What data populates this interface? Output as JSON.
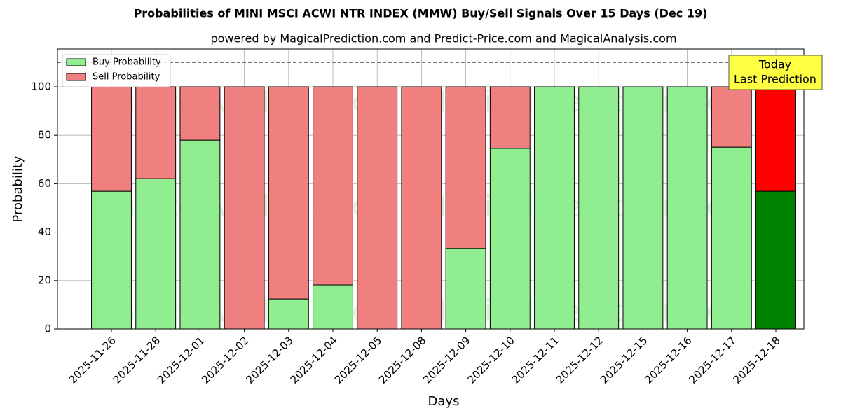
{
  "chart_data": {
    "type": "stacked_bar",
    "title": "Probabilities of MINI MSCI ACWI NTR INDEX (MMW) Buy/Sell Signals Over 15 Days (Dec 19)",
    "subtitle": "powered by MagicalPrediction.com and Predict-Price.com and MagicalAnalysis.com",
    "x_label": "Days",
    "y_label": "Probability",
    "categories": [
      "2025-11-26",
      "2025-11-28",
      "2025-12-01",
      "2025-12-02",
      "2025-12-03",
      "2025-12-04",
      "2025-12-05",
      "2025-12-08",
      "2025-12-09",
      "2025-12-10",
      "2025-12-11",
      "2025-12-12",
      "2025-12-15",
      "2025-12-16",
      "2025-12-17",
      "2025-12-18"
    ],
    "series": [
      {
        "name": "Buy Probability",
        "color": "#90ee90",
        "today_color": "#008000",
        "values": [
          56.9,
          62.1,
          78,
          0,
          12.4,
          18.2,
          0,
          0,
          33.2,
          74.6,
          100,
          100,
          100,
          100,
          75.1,
          56.9
        ]
      },
      {
        "name": "Sell Probability",
        "color": "#f08080",
        "today_color": "#ff0000",
        "values": [
          43.1,
          37.9,
          22,
          100,
          87.6,
          81.8,
          100,
          100,
          66.8,
          25.4,
          0,
          0,
          0,
          0,
          24.9,
          43.1
        ]
      }
    ],
    "ylim": [
      0,
      115.6
    ],
    "yticks": [
      0,
      20,
      40,
      60,
      80,
      100
    ],
    "grid": true,
    "reference_line": 110,
    "legend": "upper left",
    "annotation": [
      "Today",
      "Last Prediction"
    ],
    "watermarks": [
      "MagicalAnalysis.com",
      "MagicalPrediction.com"
    ]
  }
}
